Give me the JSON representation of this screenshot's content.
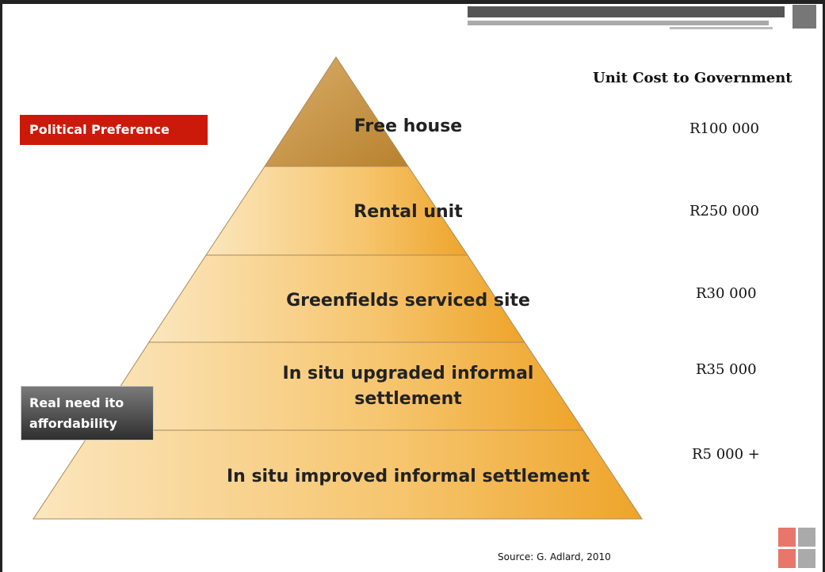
{
  "header": {
    "title": "Unit Cost to Government"
  },
  "side_labels": {
    "top": "Political Preference",
    "bottom": "Real need ito affordability"
  },
  "levels": [
    {
      "label": "Free house",
      "cost": "R100 000"
    },
    {
      "label": "Rental unit",
      "cost": "R250 000"
    },
    {
      "label": "Greenfields serviced site",
      "cost": "R30 000"
    },
    {
      "label": "In situ upgraded informal settlement",
      "cost": "R35 000"
    },
    {
      "label": "In situ improved informal settlement",
      "cost": "R5 000 +"
    }
  ],
  "source": "Source: G. Adlard, 2010"
}
